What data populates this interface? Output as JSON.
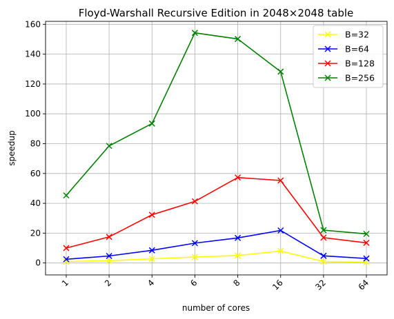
{
  "chart_data": {
    "type": "line",
    "title": "Floyd-Warshall Recursive Edition in 2048×2048 table",
    "xlabel": "number of cores",
    "ylabel": "speedup",
    "categories": [
      "1",
      "2",
      "4",
      "6",
      "8",
      "16",
      "32",
      "64"
    ],
    "ylim": [
      -8,
      162
    ],
    "yticks": [
      0,
      20,
      40,
      60,
      80,
      100,
      120,
      140,
      160
    ],
    "grid": true,
    "legend_position": "top-right",
    "marker": "x",
    "series": [
      {
        "name": "B=32",
        "color": "#ffff00",
        "values": [
          1.0,
          1.5,
          2.8,
          4.0,
          5.0,
          8.0,
          1.0,
          0.5
        ]
      },
      {
        "name": "B=64",
        "color": "#0000ff",
        "values": [
          2.5,
          4.7,
          8.5,
          13.3,
          16.8,
          21.8,
          4.8,
          3.0
        ]
      },
      {
        "name": "B=128",
        "color": "#ff0000",
        "values": [
          10.0,
          17.5,
          32.3,
          41.3,
          57.3,
          55.3,
          17.0,
          13.5
        ]
      },
      {
        "name": "B=256",
        "color": "#008000",
        "values": [
          45.3,
          78.5,
          93.5,
          154.3,
          150.2,
          128.3,
          22.0,
          19.5
        ]
      }
    ]
  }
}
